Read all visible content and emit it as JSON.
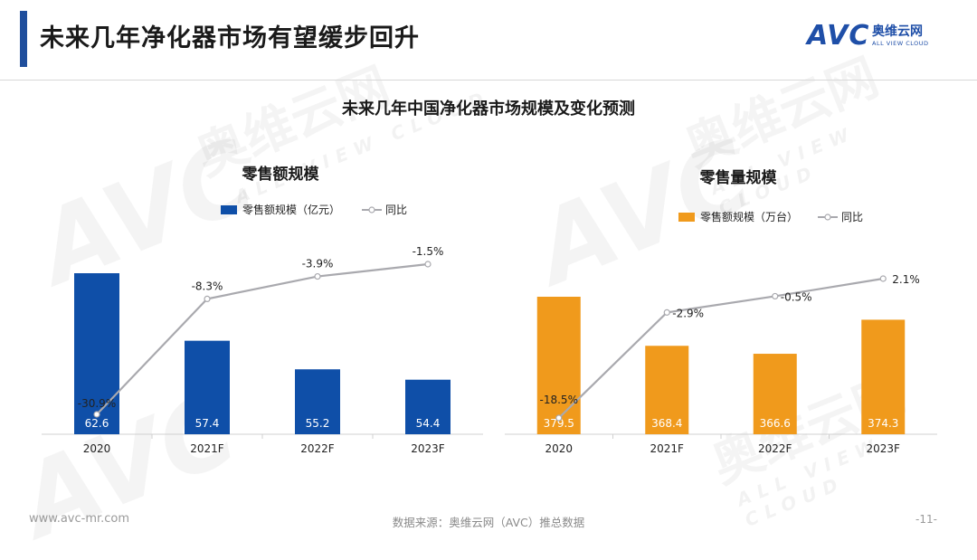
{
  "header": {
    "title": "未来几年净化器市场有望缓步回升",
    "logo_brand": "AVC",
    "logo_name_cn": "奥维云网",
    "logo_name_en": "ALL VIEW CLOUD"
  },
  "main_title": "未来几年中国净化器市场规模及变化预测",
  "colors": {
    "accent": "#1f4e9c",
    "bar_blue": "#0f4fa8",
    "bar_orange": "#f09a1c",
    "line_gray": "#a9a9ae"
  },
  "chart_data": [
    {
      "type": "bar",
      "title": "零售额规模",
      "categories": [
        "2020",
        "2021F",
        "2022F",
        "2023F"
      ],
      "series": [
        {
          "name": "零售额规模（亿元）",
          "kind": "bar",
          "values": [
            62.6,
            57.4,
            55.2,
            54.4
          ],
          "labels": [
            "62.6",
            "57.4",
            "55.2",
            "54.4"
          ]
        },
        {
          "name": "同比",
          "kind": "line",
          "values": [
            -30.9,
            -8.3,
            -3.9,
            -1.5
          ],
          "labels": [
            "-30.9%",
            "-8.3%",
            "-3.9%",
            "-1.5%"
          ]
        }
      ],
      "legend_position": "top",
      "grid": false
    },
    {
      "type": "bar",
      "title": "零售量规模",
      "categories": [
        "2020",
        "2021F",
        "2022F",
        "2023F"
      ],
      "series": [
        {
          "name": "零售额规模（万台）",
          "kind": "bar",
          "values": [
            379.5,
            368.4,
            366.6,
            374.3
          ],
          "labels": [
            "379.5",
            "368.4",
            "366.6",
            "374.3"
          ]
        },
        {
          "name": "同比",
          "kind": "line",
          "values": [
            -18.5,
            -2.9,
            -0.5,
            2.1
          ],
          "labels": [
            "-18.5%",
            "-2.9%",
            "-0.5%",
            "2.1%"
          ]
        }
      ],
      "legend_position": "top",
      "grid": false
    }
  ],
  "footer": {
    "website": "www.avc-mr.com",
    "source": "数据来源：奥维云网（AVC）推总数据",
    "page": "-11-"
  }
}
